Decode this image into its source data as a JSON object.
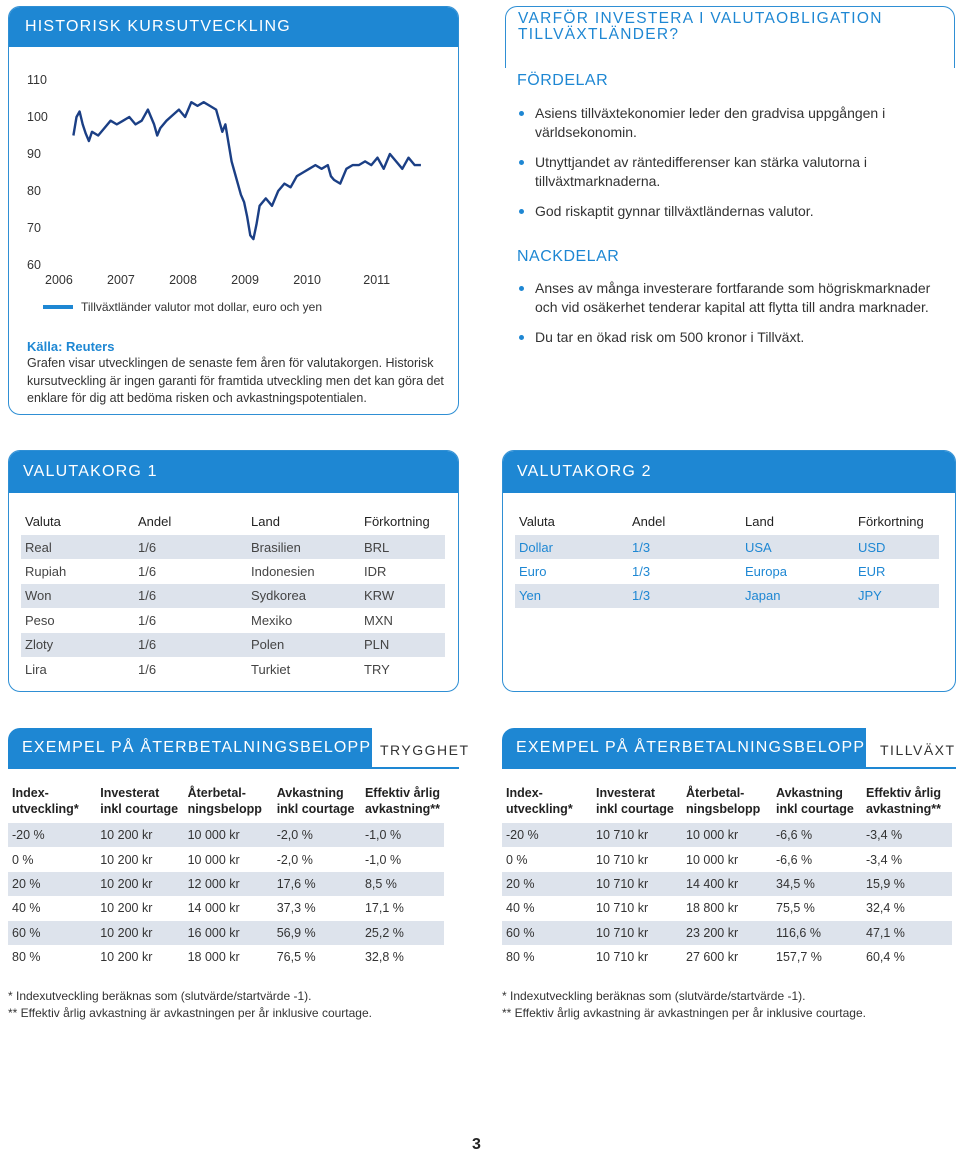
{
  "chart_box": {
    "title": "HISTORISK KURSUTVECKLING",
    "legend": "Tillväxtländer valutor mot dollar, euro och yen",
    "source": "Källa: Reuters",
    "description": "Grafen visar utvecklingen de senaste fem åren för valutakorgen. Historisk kursutveckling är ingen garanti för framtida utveckling men det kan göra det enklare för dig att bedöma risken och avkastningspotentialen.",
    "colors": {
      "accent": "#1e87d3",
      "line": "#1b3f85"
    }
  },
  "chart_data": {
    "type": "line",
    "title": "",
    "xlabel": "",
    "ylabel": "",
    "x_ticks": [
      "2006",
      "2007",
      "2008",
      "2009",
      "2010",
      "2011"
    ],
    "y_ticks": [
      "110",
      "100",
      "90",
      "80",
      "70",
      "60"
    ],
    "ylim": [
      60,
      110
    ],
    "xlim": [
      2006,
      2011.85
    ],
    "grid": false,
    "legend_position": "bottom",
    "series": [
      {
        "name": "Tillväxtländer valutor mot dollar, euro och yen",
        "x": [
          2006.2,
          2006.25,
          2006.3,
          2006.35,
          2006.4,
          2006.45,
          2006.5,
          2006.6,
          2006.7,
          2006.8,
          2006.9,
          2007.0,
          2007.1,
          2007.2,
          2007.3,
          2007.4,
          2007.5,
          2007.55,
          2007.6,
          2007.7,
          2007.8,
          2007.9,
          2008.0,
          2008.1,
          2008.2,
          2008.3,
          2008.4,
          2008.5,
          2008.55,
          2008.6,
          2008.65,
          2008.7,
          2008.75,
          2008.8,
          2008.85,
          2008.9,
          2008.95,
          2009.0,
          2009.05,
          2009.1,
          2009.15,
          2009.2,
          2009.3,
          2009.4,
          2009.5,
          2009.6,
          2009.7,
          2009.8,
          2009.9,
          2010.0,
          2010.1,
          2010.2,
          2010.3,
          2010.35,
          2010.4,
          2010.5,
          2010.6,
          2010.7,
          2010.8,
          2010.9,
          2011.0,
          2011.1,
          2011.2,
          2011.3,
          2011.4,
          2011.5,
          2011.6,
          2011.7,
          2011.8
        ],
        "values": [
          95,
          100,
          101.5,
          98,
          95.5,
          93.5,
          96,
          95,
          97,
          99,
          98,
          99,
          100,
          98,
          99,
          102,
          98,
          95,
          97,
          99,
          100.5,
          102,
          100,
          104,
          103,
          104,
          103,
          102,
          99,
          96,
          98,
          93,
          88,
          85,
          82,
          79,
          77,
          73,
          68,
          67,
          71,
          76,
          78,
          76,
          80,
          82,
          81,
          84,
          85,
          86,
          87,
          86,
          87,
          84,
          83,
          82,
          86,
          87,
          87,
          88,
          87,
          89,
          86,
          90,
          88,
          86,
          89,
          87,
          87
        ]
      }
    ]
  },
  "why": {
    "title": "VARFÖR INVESTERA I VALUTAOBLIGATION TILLVÄXTLÄNDER?",
    "pros_head": "FÖRDELAR",
    "pros": [
      "Asiens tillväxtekonomier leder den gradvisa uppgången i världsekonomin.",
      "Utnyttjandet av räntedifferenser kan stärka valutorna i tillväxtmarknaderna.",
      "God riskaptit gynnar tillväxtländernas valutor."
    ],
    "cons_head": "NACKDELAR",
    "cons": [
      "Anses av många investerare fortfarande som högriskmarknader och vid osäkerhet tenderar kapital att flytta till andra marknader.",
      "Du tar en ökad risk om 500 kronor i Tillväxt."
    ]
  },
  "basket1": {
    "title": "VALUTAKORG 1",
    "headers": [
      "Valuta",
      "Andel",
      "Land",
      "Förkortning"
    ],
    "rows": [
      [
        "Real",
        "1/6",
        "Brasilien",
        "BRL"
      ],
      [
        "Rupiah",
        "1/6",
        "Indonesien",
        "IDR"
      ],
      [
        "Won",
        "1/6",
        "Sydkorea",
        "KRW"
      ],
      [
        "Peso",
        "1/6",
        "Mexiko",
        "MXN"
      ],
      [
        "Zloty",
        "1/6",
        "Polen",
        "PLN"
      ],
      [
        "Lira",
        "1/6",
        "Turkiet",
        "TRY"
      ]
    ]
  },
  "basket2": {
    "title": "VALUTAKORG 2",
    "headers": [
      "Valuta",
      "Andel",
      "Land",
      "Förkortning"
    ],
    "rows": [
      [
        "Dollar",
        "1/3",
        "USA",
        "USD"
      ],
      [
        "Euro",
        "1/3",
        "Europa",
        "EUR"
      ],
      [
        "Yen",
        "1/3",
        "Japan",
        "JPY"
      ]
    ]
  },
  "example1": {
    "title": "EXEMPEL PÅ ÅTERBETALNINGSBELOPP",
    "tag": "TRYGGHET",
    "headers": [
      [
        "Index-",
        "utveckling*"
      ],
      [
        "Investerat",
        "inkl courtage"
      ],
      [
        "Återbetal-",
        "ningsbelopp"
      ],
      [
        "Avkastning",
        "inkl courtage"
      ],
      [
        "Effektiv årlig",
        "avkastning**"
      ]
    ],
    "rows": [
      [
        "-20 %",
        "10 200 kr",
        "10 000 kr",
        "-2,0 %",
        "-1,0 %"
      ],
      [
        "0 %",
        "10 200 kr",
        "10 000 kr",
        "-2,0 %",
        "-1,0 %"
      ],
      [
        "20 %",
        "10 200 kr",
        "12 000 kr",
        "17,6 %",
        "8,5 %"
      ],
      [
        "40 %",
        "10 200 kr",
        "14 000 kr",
        "37,3 %",
        "17,1 %"
      ],
      [
        "60 %",
        "10 200 kr",
        "16 000 kr",
        "56,9 %",
        "25,2 %"
      ],
      [
        "80 %",
        "10 200 kr",
        "18 000 kr",
        "76,5 %",
        "32,8 %"
      ]
    ],
    "footnotes": [
      "*   Indexutveckling beräknas som (slutvärde/startvärde -1).",
      "** Effektiv årlig avkastning är avkastningen per år inklusive courtage."
    ]
  },
  "example2": {
    "title": "EXEMPEL PÅ ÅTERBETALNINGSBELOPP",
    "tag": "TILLVÄXT",
    "headers": [
      [
        "Index-",
        "utveckling*"
      ],
      [
        "Investerat",
        "inkl courtage"
      ],
      [
        "Återbetal-",
        "ningsbelopp"
      ],
      [
        "Avkastning",
        "inkl courtage"
      ],
      [
        "Effektiv årlig",
        "avkastning**"
      ]
    ],
    "rows": [
      [
        "-20 %",
        "10 710 kr",
        "10 000 kr",
        "-6,6 %",
        "-3,4 %"
      ],
      [
        "0 %",
        "10 710 kr",
        "10 000 kr",
        "-6,6 %",
        "-3,4 %"
      ],
      [
        "20 %",
        "10 710 kr",
        "14 400 kr",
        "34,5 %",
        "15,9 %"
      ],
      [
        "40 %",
        "10 710 kr",
        "18 800 kr",
        "75,5 %",
        "32,4 %"
      ],
      [
        "60 %",
        "10 710 kr",
        "23 200 kr",
        "116,6 %",
        "47,1 %"
      ],
      [
        "80 %",
        "10 710 kr",
        "27 600 kr",
        "157,7 %",
        "60,4 %"
      ]
    ],
    "footnotes": [
      "*   Indexutveckling beräknas som (slutvärde/startvärde -1).",
      "** Effektiv årlig avkastning är avkastningen per år inklusive courtage."
    ]
  },
  "page_number": "3"
}
